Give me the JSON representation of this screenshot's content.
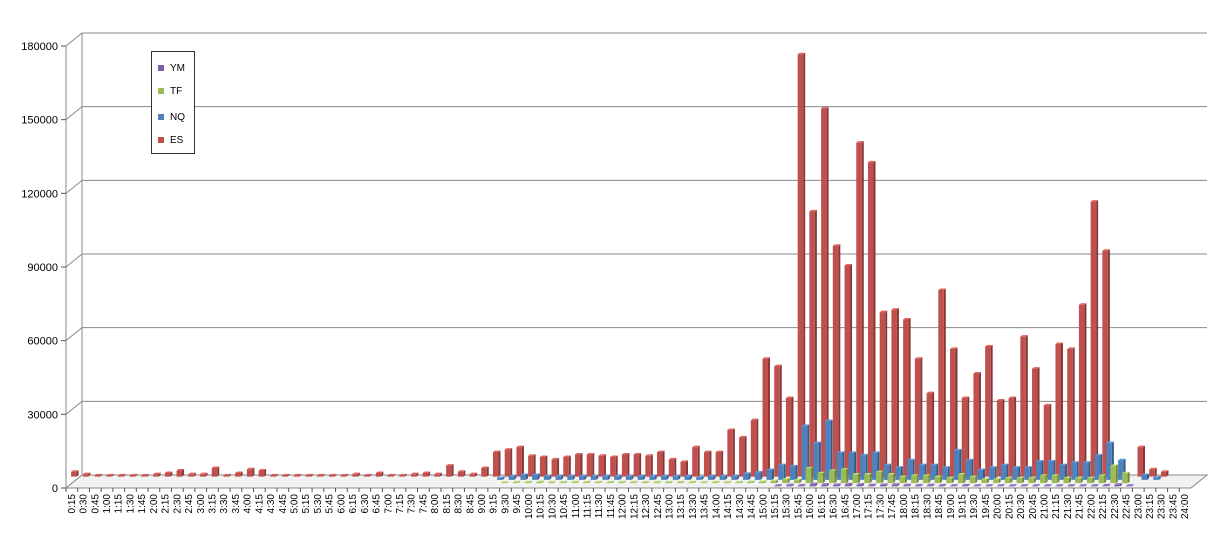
{
  "chart_data": {
    "type": "bar",
    "title": "",
    "xlabel": "",
    "ylabel": "",
    "ylim": [
      0,
      180000
    ],
    "yticks": [
      0,
      30000,
      60000,
      90000,
      120000,
      150000,
      180000
    ],
    "ytick_labels": [
      "0",
      "30000",
      "60000",
      "90000",
      "120000",
      "150000",
      "180000"
    ],
    "grid": true,
    "legend_position": "top-left",
    "categories": [
      "0:15",
      "0:30",
      "0:45",
      "1:00",
      "1:15",
      "1:30",
      "1:45",
      "2:00",
      "2:15",
      "2:30",
      "2:45",
      "3:00",
      "3:15",
      "3:30",
      "3:45",
      "4:00",
      "4:15",
      "4:30",
      "4:45",
      "5:00",
      "5:15",
      "5:30",
      "5:45",
      "6:00",
      "6:15",
      "6:30",
      "6:45",
      "7:00",
      "7:15",
      "7:30",
      "7:45",
      "8:00",
      "8:15",
      "8:30",
      "8:45",
      "9:00",
      "9:15",
      "9:30",
      "9:45",
      "10:00",
      "10:15",
      "10:30",
      "10:45",
      "11:00",
      "11:15",
      "11:30",
      "11:45",
      "12:00",
      "12:15",
      "12:30",
      "12:45",
      "13:00",
      "13:15",
      "13:30",
      "13:45",
      "14:00",
      "14:15",
      "14:30",
      "14:45",
      "15:00",
      "15:15",
      "15:30",
      "15:45",
      "16:00",
      "16:15",
      "16:30",
      "16:45",
      "17:00",
      "17:15",
      "17:30",
      "17:45",
      "18:00",
      "18:15",
      "18:30",
      "18:45",
      "19:00",
      "19:15",
      "19:30",
      "19:45",
      "20:00",
      "20:15",
      "20:30",
      "20:45",
      "21:00",
      "21:15",
      "21:30",
      "21:45",
      "22:00",
      "22:15",
      "22:30",
      "22:45",
      "23:00",
      "23:15",
      "23:30",
      "23:45",
      "24:00"
    ],
    "series": [
      {
        "name": "YM",
        "color": "#7b62a8",
        "values": [
          0,
          0,
          0,
          0,
          0,
          0,
          0,
          0,
          0,
          0,
          0,
          0,
          0,
          0,
          0,
          0,
          0,
          0,
          0,
          0,
          0,
          0,
          0,
          0,
          0,
          0,
          0,
          0,
          0,
          0,
          0,
          0,
          0,
          0,
          0,
          0,
          0,
          0,
          0,
          0,
          0,
          0,
          0,
          0,
          0,
          0,
          0,
          0,
          0,
          0,
          0,
          0,
          0,
          0,
          0,
          0,
          0,
          0,
          0,
          300,
          500,
          400,
          900,
          700,
          600,
          800,
          700,
          500,
          600,
          700,
          500,
          400,
          500,
          400,
          300,
          400,
          300,
          300,
          300,
          300,
          300,
          300,
          300,
          300,
          300,
          300,
          300,
          400,
          700,
          300,
          0,
          0,
          0,
          0,
          0,
          0
        ]
      },
      {
        "name": "TF",
        "color": "#9bbb59",
        "values": [
          0,
          0,
          0,
          0,
          0,
          0,
          0,
          0,
          0,
          0,
          0,
          0,
          0,
          0,
          0,
          0,
          0,
          0,
          0,
          0,
          0,
          0,
          0,
          0,
          0,
          0,
          0,
          0,
          0,
          0,
          0,
          0,
          0,
          0,
          0,
          0,
          200,
          300,
          300,
          400,
          300,
          300,
          300,
          300,
          300,
          300,
          300,
          300,
          300,
          300,
          300,
          300,
          300,
          200,
          300,
          300,
          300,
          400,
          500,
          800,
          1500,
          1200,
          6000,
          4000,
          5000,
          5500,
          3500,
          3500,
          4500,
          3500,
          2500,
          3000,
          3000,
          2500,
          2000,
          3500,
          2500,
          1500,
          1500,
          2000,
          2000,
          2000,
          3000,
          3000,
          2000,
          2000,
          2000,
          3000,
          7000,
          4000,
          0,
          0,
          0,
          0,
          0,
          0
        ]
      },
      {
        "name": "NQ",
        "color": "#4f81bd",
        "values": [
          0,
          0,
          0,
          0,
          0,
          0,
          0,
          0,
          0,
          0,
          0,
          0,
          0,
          0,
          0,
          0,
          0,
          0,
          0,
          0,
          0,
          0,
          0,
          0,
          0,
          0,
          0,
          0,
          0,
          0,
          0,
          0,
          0,
          0,
          0,
          0,
          800,
          1500,
          2000,
          2000,
          1500,
          1500,
          1500,
          1500,
          1500,
          1500,
          1500,
          1500,
          1500,
          1500,
          1500,
          1500,
          1500,
          1000,
          1500,
          1500,
          1500,
          2500,
          3000,
          4000,
          6000,
          5500,
          22000,
          15000,
          24000,
          11000,
          11000,
          10000,
          11000,
          6000,
          5000,
          8000,
          6000,
          6000,
          5000,
          12000,
          8000,
          4000,
          5000,
          6000,
          5000,
          5000,
          7500,
          7500,
          6000,
          7000,
          7000,
          10000,
          15000,
          8000,
          0,
          2000,
          1000,
          0,
          0,
          0
        ]
      },
      {
        "name": "ES",
        "color": "#c0504d",
        "values": [
          2000,
          1000,
          500,
          500,
          500,
          500,
          500,
          1000,
          1500,
          2500,
          1000,
          1000,
          3500,
          500,
          1500,
          3000,
          2500,
          500,
          500,
          500,
          500,
          500,
          500,
          500,
          1000,
          500,
          1500,
          500,
          500,
          1000,
          1500,
          1000,
          4500,
          2000,
          1000,
          3500,
          10000,
          11000,
          12000,
          8500,
          8000,
          7000,
          8000,
          9000,
          9000,
          8500,
          8000,
          9000,
          9000,
          8500,
          10000,
          7000,
          6000,
          12000,
          10000,
          10000,
          19000,
          16000,
          23000,
          48000,
          45000,
          32000,
          172000,
          108000,
          150000,
          94000,
          86000,
          136000,
          128000,
          67000,
          68000,
          64000,
          48000,
          34000,
          76000,
          52000,
          32000,
          42000,
          53000,
          31000,
          32000,
          57000,
          44000,
          29000,
          54000,
          52000,
          70000,
          112000,
          92000,
          0,
          0,
          12000,
          3000,
          2000,
          0,
          0
        ]
      }
    ]
  },
  "legend": {
    "items": [
      {
        "label": "YM",
        "color": "#7b62a8"
      },
      {
        "label": "TF",
        "color": "#9bbb59"
      },
      {
        "label": "NQ",
        "color": "#4f81bd"
      },
      {
        "label": "ES",
        "color": "#c0504d"
      }
    ]
  }
}
